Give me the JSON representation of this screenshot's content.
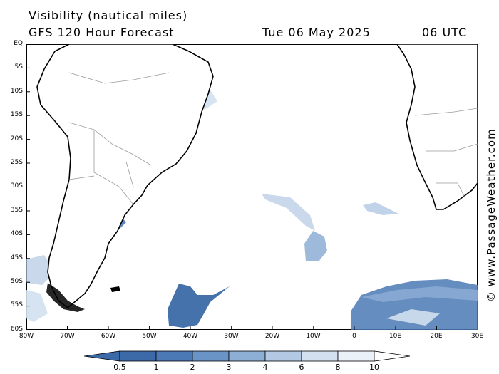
{
  "header": {
    "title_line1": "Visibility (nautical miles)",
    "title_line2": "GFS 120 Hour Forecast",
    "date": "Tue 06 May 2025",
    "time": "06 UTC"
  },
  "credit": "© www.PassageWeather.com",
  "map": {
    "lat_labels": [
      "EQ",
      "5S",
      "10S",
      "15S",
      "20S",
      "25S",
      "30S",
      "35S",
      "40S",
      "45S",
      "50S",
      "55S",
      "60S"
    ],
    "lon_labels": [
      "80W",
      "70W",
      "60W",
      "50W",
      "40W",
      "30W",
      "20W",
      "10W",
      "0",
      "10E",
      "20E",
      "30E"
    ],
    "land_color": "#ffffff",
    "coast_color": "#000000",
    "border_color": "#9a9a9a"
  },
  "legend": {
    "labels": [
      "0.5",
      "1",
      "2",
      "3",
      "4",
      "6",
      "8",
      "10"
    ],
    "colors": [
      "#3c6aa8",
      "#4b79b5",
      "#6b94c6",
      "#8daed5",
      "#b2c8e3",
      "#d2e0ef",
      "#ebf1f8",
      "#ffffff"
    ]
  }
}
